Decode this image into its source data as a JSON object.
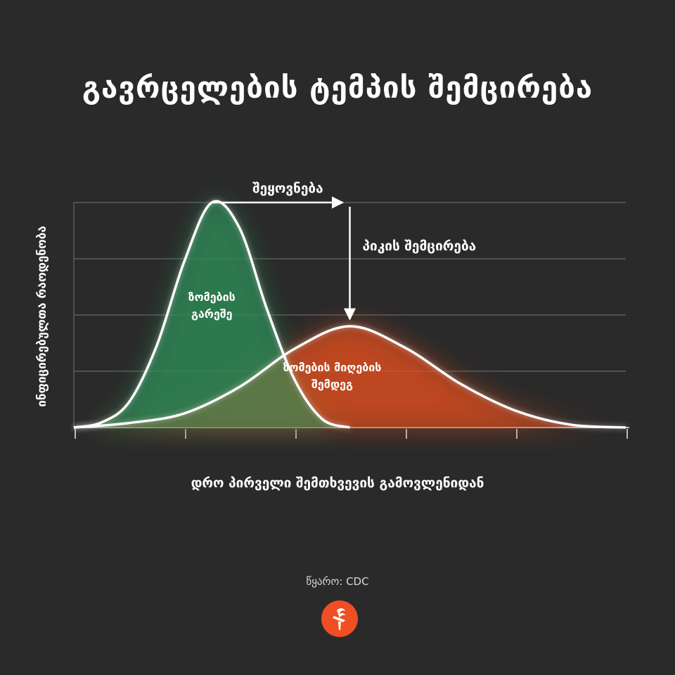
{
  "title": "გავრცელების ტემპის შემცირება",
  "source_label": "წყარო: CDC",
  "colors": {
    "background": "#2a2a2a",
    "green": "#2e8b57",
    "orange": "#e8501e",
    "curve": "#ffffff",
    "grid": "#5c5c5c"
  },
  "logo": {
    "icon": "torch-icon",
    "color": "#f04e23"
  },
  "chart_data": {
    "type": "area",
    "title": "გავრცელების ტემპის შემცირება",
    "xlabel": "დრო პირველი შემთხვევის გამოვლენიდან",
    "ylabel": "ინფიცირებულთა რაოდენობა",
    "grid": true,
    "x_ticks": 6,
    "y_ticks": 4,
    "ylim": [
      0,
      4
    ],
    "xlim": [
      0,
      5
    ],
    "series": [
      {
        "name": "ზომების გარეშე",
        "color": "green",
        "x": [
          0,
          0.25,
          0.5,
          0.75,
          1.0,
          1.25,
          1.5,
          1.75,
          2.0,
          2.25,
          2.5
        ],
        "values": [
          0,
          0.09,
          0.45,
          1.45,
          2.95,
          4.0,
          3.55,
          2.1,
          0.85,
          0.15,
          0
        ]
      },
      {
        "name": "ზომების მიღების შემდეგ",
        "color": "orange",
        "x": [
          0,
          0.5,
          1.0,
          1.5,
          2.0,
          2.5,
          3.0,
          3.5,
          4.0,
          4.5,
          5.0
        ],
        "values": [
          0,
          0.08,
          0.25,
          0.72,
          1.4,
          1.8,
          1.42,
          0.78,
          0.3,
          0.05,
          0
        ]
      }
    ],
    "annotations": [
      {
        "text": "შეყოვნება",
        "type": "horizontal-arrow"
      },
      {
        "text": "პიკის შემცირება",
        "type": "vertical-arrow"
      }
    ]
  }
}
